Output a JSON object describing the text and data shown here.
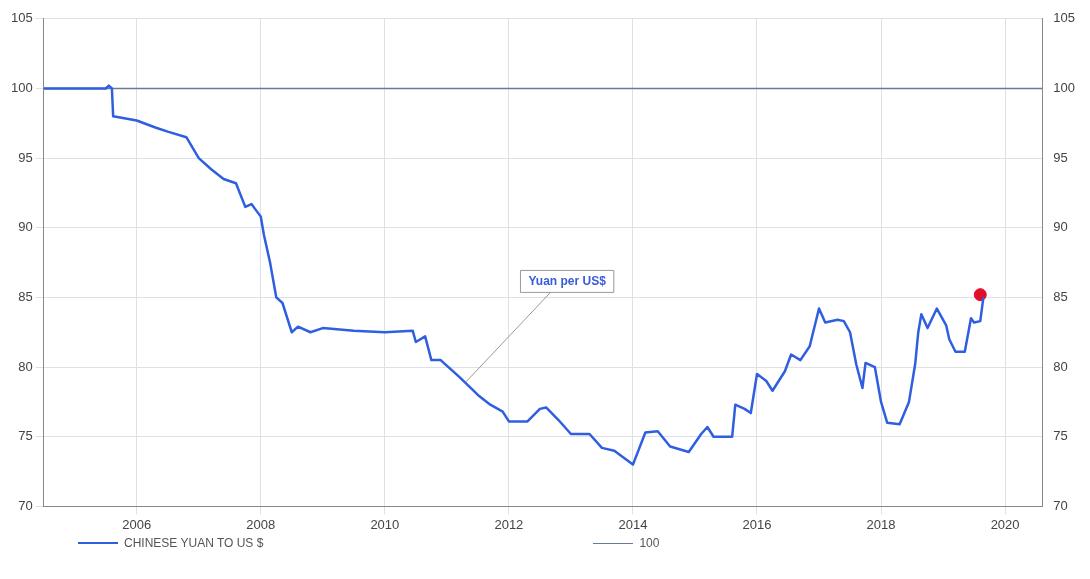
{
  "chart_data": {
    "type": "line",
    "xlim": [
      2004.5,
      2020.6
    ],
    "xticks": [
      2006,
      2008,
      2010,
      2012,
      2014,
      2016,
      2018,
      2020
    ],
    "ylim": [
      70,
      105
    ],
    "yticks": [
      70,
      75,
      80,
      85,
      90,
      95,
      100,
      105
    ],
    "y2lim": [
      70,
      105
    ],
    "y2ticks": [
      70,
      75,
      80,
      85,
      90,
      95,
      100,
      105
    ],
    "grid": true,
    "legend": "bottom left",
    "marker": "none",
    "line_style": "solid",
    "series": [
      {
        "name": "CHINESE YUAN TO US $",
        "color": "#2f5fe0",
        "x": [
          2004.5,
          2005.5,
          2005.55,
          2005.6,
          2005.62,
          2006,
          2006.3,
          2006.5,
          2006.8,
          2007,
          2007.2,
          2007.4,
          2007.6,
          2007.75,
          2007.85,
          2008,
          2008.05,
          2008.15,
          2008.25,
          2008.35,
          2008.5,
          2008.6,
          2008.8,
          2009,
          2009.5,
          2010,
          2010.45,
          2010.5,
          2010.65,
          2010.75,
          2010.9,
          2011.2,
          2011.5,
          2011.7,
          2011.9,
          2012,
          2012.3,
          2012.5,
          2012.6,
          2012.8,
          2013,
          2013.3,
          2013.5,
          2013.7,
          2014,
          2014.2,
          2014.4,
          2014.6,
          2014.9,
          2015.1,
          2015.2,
          2015.3,
          2015.6,
          2015.65,
          2015.8,
          2015.9,
          2016,
          2016.15,
          2016.25,
          2016.45,
          2016.55,
          2016.7,
          2016.85,
          2017,
          2017.1,
          2017.3,
          2017.4,
          2017.5,
          2017.6,
          2017.7,
          2017.75,
          2017.9,
          2018,
          2018.1,
          2018.3,
          2018.45,
          2018.55,
          2018.6,
          2018.65,
          2018.75,
          2018.9,
          2019.05,
          2019.1,
          2019.2,
          2019.35,
          2019.45,
          2019.5,
          2019.6,
          2019.65
        ],
        "values": [
          100,
          100,
          100.2,
          100,
          98,
          97.7,
          97.2,
          96.9,
          96.5,
          95,
          94.2,
          93.5,
          93.2,
          91.5,
          91.7,
          90.8,
          89.5,
          87.5,
          85,
          84.6,
          82.5,
          82.9,
          82.5,
          82.8,
          82.6,
          82.5,
          82.6,
          81.8,
          82.2,
          80.5,
          80.5,
          79.3,
          78,
          77.3,
          76.8,
          76.1,
          76.1,
          77,
          77.1,
          76.2,
          75.2,
          75.2,
          74.2,
          74,
          73,
          75.3,
          75.4,
          74.3,
          73.9,
          75.2,
          75.7,
          75,
          75,
          77.3,
          77,
          76.7,
          79.5,
          79,
          78.3,
          79.7,
          80.9,
          80.5,
          81.5,
          84.2,
          83.2,
          83.4,
          83.3,
          82.5,
          80.2,
          78.5,
          80.3,
          80,
          77.5,
          76,
          75.9,
          77.5,
          80.2,
          82.5,
          83.8,
          82.8,
          84.2,
          83,
          82,
          81.1,
          81.1,
          83.5,
          83.2,
          83.3,
          85
        ]
      },
      {
        "type": "scatter",
        "color": "#e0102a",
        "marker": "circle",
        "x": [
          2019.6
        ],
        "values": [
          85.2
        ]
      }
    ],
    "ref_lines": [
      {
        "axis": "y",
        "value": 100,
        "label": "100",
        "color": "#6b7a99"
      }
    ],
    "annotations": [
      {
        "text": "Yuan per US$",
        "x": 2011.3,
        "y": 78.9
      }
    ]
  }
}
